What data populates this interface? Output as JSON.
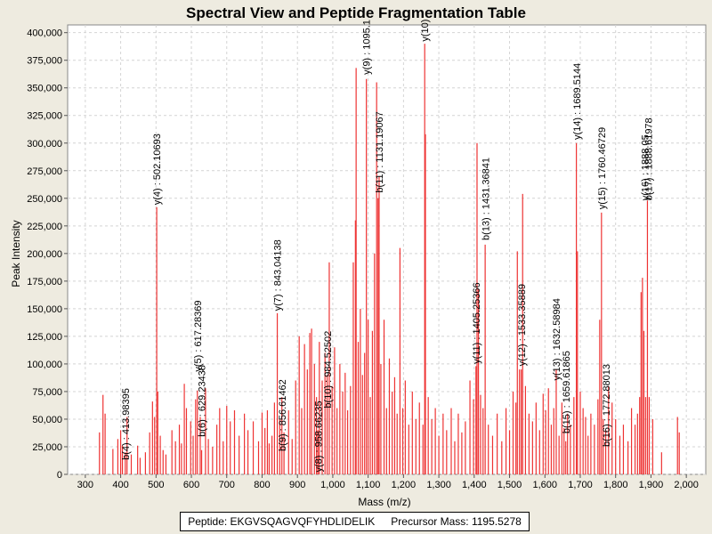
{
  "chart_data": {
    "type": "bar",
    "title": "Spectral View and Peptide Fragmentation Table",
    "xlabel": "Mass (m/z)",
    "ylabel": "Peak Intensity",
    "xlim": [
      250,
      2055
    ],
    "ylim": [
      0,
      407000
    ],
    "xticks": [
      300,
      400,
      500,
      600,
      700,
      800,
      900,
      1000,
      1100,
      1200,
      1300,
      1400,
      1500,
      1600,
      1700,
      1800,
      1900,
      2000
    ],
    "xtick_labels": [
      "300",
      "400",
      "500",
      "600",
      "700",
      "800",
      "900",
      "1,000",
      "1,100",
      "1,200",
      "1,300",
      "1,400",
      "1,500",
      "1,600",
      "1,700",
      "1,800",
      "1,900",
      "2,000"
    ],
    "yticks": [
      0,
      25000,
      50000,
      75000,
      100000,
      125000,
      150000,
      175000,
      200000,
      225000,
      250000,
      275000,
      300000,
      325000,
      350000,
      375000,
      400000
    ],
    "ytick_labels": [
      "0",
      "25,000",
      "50,000",
      "75,000",
      "100,000",
      "125,000",
      "150,000",
      "175,000",
      "200,000",
      "225,000",
      "250,000",
      "275,000",
      "300,000",
      "325,000",
      "350,000",
      "375,000",
      "400,000"
    ],
    "grid": true,
    "bar_color": "#ee3333",
    "peaks": [
      {
        "mz": 340,
        "i": 38000
      },
      {
        "mz": 350,
        "i": 72000
      },
      {
        "mz": 356,
        "i": 55000
      },
      {
        "mz": 378,
        "i": 23000
      },
      {
        "mz": 392,
        "i": 32000
      },
      {
        "mz": 400,
        "i": 40000
      },
      {
        "mz": 405,
        "i": 26000
      },
      {
        "mz": 413,
        "i": 20000
      },
      {
        "mz": 418,
        "i": 52000
      },
      {
        "mz": 430,
        "i": 18000
      },
      {
        "mz": 448,
        "i": 26000
      },
      {
        "mz": 455,
        "i": 15000
      },
      {
        "mz": 470,
        "i": 20000
      },
      {
        "mz": 482,
        "i": 38000
      },
      {
        "mz": 490,
        "i": 66000
      },
      {
        "mz": 496,
        "i": 52000
      },
      {
        "mz": 502,
        "i": 242000
      },
      {
        "mz": 505,
        "i": 75000
      },
      {
        "mz": 512,
        "i": 35000
      },
      {
        "mz": 520,
        "i": 22000
      },
      {
        "mz": 528,
        "i": 18000
      },
      {
        "mz": 545,
        "i": 40000
      },
      {
        "mz": 555,
        "i": 30000
      },
      {
        "mz": 566,
        "i": 45000
      },
      {
        "mz": 572,
        "i": 28000
      },
      {
        "mz": 580,
        "i": 82000
      },
      {
        "mz": 586,
        "i": 60000
      },
      {
        "mz": 598,
        "i": 48000
      },
      {
        "mz": 605,
        "i": 35000
      },
      {
        "mz": 612,
        "i": 68000
      },
      {
        "mz": 617,
        "i": 76000
      },
      {
        "mz": 625,
        "i": 52000
      },
      {
        "mz": 629,
        "i": 22000
      },
      {
        "mz": 640,
        "i": 78000
      },
      {
        "mz": 648,
        "i": 32000
      },
      {
        "mz": 660,
        "i": 25000
      },
      {
        "mz": 672,
        "i": 45000
      },
      {
        "mz": 680,
        "i": 60000
      },
      {
        "mz": 690,
        "i": 30000
      },
      {
        "mz": 700,
        "i": 62000
      },
      {
        "mz": 710,
        "i": 48000
      },
      {
        "mz": 722,
        "i": 58000
      },
      {
        "mz": 735,
        "i": 35000
      },
      {
        "mz": 750,
        "i": 55000
      },
      {
        "mz": 760,
        "i": 40000
      },
      {
        "mz": 775,
        "i": 48000
      },
      {
        "mz": 790,
        "i": 30000
      },
      {
        "mz": 800,
        "i": 56000
      },
      {
        "mz": 808,
        "i": 42000
      },
      {
        "mz": 815,
        "i": 58000
      },
      {
        "mz": 820,
        "i": 28000
      },
      {
        "mz": 828,
        "i": 35000
      },
      {
        "mz": 835,
        "i": 65000
      },
      {
        "mz": 843,
        "i": 146000
      },
      {
        "mz": 850,
        "i": 50000
      },
      {
        "mz": 856,
        "i": 70000
      },
      {
        "mz": 862,
        "i": 38000
      },
      {
        "mz": 875,
        "i": 58000
      },
      {
        "mz": 885,
        "i": 32000
      },
      {
        "mz": 895,
        "i": 85000
      },
      {
        "mz": 905,
        "i": 125000
      },
      {
        "mz": 912,
        "i": 60000
      },
      {
        "mz": 920,
        "i": 118000
      },
      {
        "mz": 928,
        "i": 95000
      },
      {
        "mz": 935,
        "i": 128000
      },
      {
        "mz": 940,
        "i": 132000
      },
      {
        "mz": 948,
        "i": 100000
      },
      {
        "mz": 954,
        "i": 70000
      },
      {
        "mz": 958,
        "i": 40000
      },
      {
        "mz": 962,
        "i": 120000
      },
      {
        "mz": 970,
        "i": 85000
      },
      {
        "mz": 978,
        "i": 110000
      },
      {
        "mz": 984,
        "i": 90000
      },
      {
        "mz": 990,
        "i": 192000
      },
      {
        "mz": 998,
        "i": 80000
      },
      {
        "mz": 1005,
        "i": 115000
      },
      {
        "mz": 1012,
        "i": 60000
      },
      {
        "mz": 1020,
        "i": 100000
      },
      {
        "mz": 1028,
        "i": 75000
      },
      {
        "mz": 1035,
        "i": 92000
      },
      {
        "mz": 1042,
        "i": 58000
      },
      {
        "mz": 1050,
        "i": 80000
      },
      {
        "mz": 1058,
        "i": 192000
      },
      {
        "mz": 1064,
        "i": 230000
      },
      {
        "mz": 1066,
        "i": 368000
      },
      {
        "mz": 1072,
        "i": 120000
      },
      {
        "mz": 1078,
        "i": 150000
      },
      {
        "mz": 1084,
        "i": 90000
      },
      {
        "mz": 1090,
        "i": 110000
      },
      {
        "mz": 1095,
        "i": 358000
      },
      {
        "mz": 1100,
        "i": 140000
      },
      {
        "mz": 1106,
        "i": 70000
      },
      {
        "mz": 1112,
        "i": 130000
      },
      {
        "mz": 1118,
        "i": 200000
      },
      {
        "mz": 1124,
        "i": 355000
      },
      {
        "mz": 1128,
        "i": 250000
      },
      {
        "mz": 1131,
        "i": 270000
      },
      {
        "mz": 1136,
        "i": 100000
      },
      {
        "mz": 1145,
        "i": 140000
      },
      {
        "mz": 1152,
        "i": 60000
      },
      {
        "mz": 1160,
        "i": 105000
      },
      {
        "mz": 1168,
        "i": 75000
      },
      {
        "mz": 1175,
        "i": 88000
      },
      {
        "mz": 1182,
        "i": 55000
      },
      {
        "mz": 1190,
        "i": 205000
      },
      {
        "mz": 1198,
        "i": 60000
      },
      {
        "mz": 1205,
        "i": 85000
      },
      {
        "mz": 1215,
        "i": 45000
      },
      {
        "mz": 1225,
        "i": 75000
      },
      {
        "mz": 1235,
        "i": 50000
      },
      {
        "mz": 1245,
        "i": 65000
      },
      {
        "mz": 1255,
        "i": 45000
      },
      {
        "mz": 1260,
        "i": 390000
      },
      {
        "mz": 1262,
        "i": 308000
      },
      {
        "mz": 1270,
        "i": 70000
      },
      {
        "mz": 1280,
        "i": 50000
      },
      {
        "mz": 1290,
        "i": 60000
      },
      {
        "mz": 1300,
        "i": 35000
      },
      {
        "mz": 1312,
        "i": 55000
      },
      {
        "mz": 1322,
        "i": 40000
      },
      {
        "mz": 1335,
        "i": 60000
      },
      {
        "mz": 1345,
        "i": 30000
      },
      {
        "mz": 1355,
        "i": 55000
      },
      {
        "mz": 1365,
        "i": 38000
      },
      {
        "mz": 1375,
        "i": 48000
      },
      {
        "mz": 1388,
        "i": 85000
      },
      {
        "mz": 1398,
        "i": 68000
      },
      {
        "mz": 1405,
        "i": 98000
      },
      {
        "mz": 1408,
        "i": 300000
      },
      {
        "mz": 1412,
        "i": 168000
      },
      {
        "mz": 1418,
        "i": 72000
      },
      {
        "mz": 1425,
        "i": 60000
      },
      {
        "mz": 1431,
        "i": 208000
      },
      {
        "mz": 1440,
        "i": 45000
      },
      {
        "mz": 1452,
        "i": 35000
      },
      {
        "mz": 1465,
        "i": 55000
      },
      {
        "mz": 1478,
        "i": 30000
      },
      {
        "mz": 1490,
        "i": 60000
      },
      {
        "mz": 1500,
        "i": 40000
      },
      {
        "mz": 1510,
        "i": 75000
      },
      {
        "mz": 1518,
        "i": 65000
      },
      {
        "mz": 1522,
        "i": 202000
      },
      {
        "mz": 1528,
        "i": 95000
      },
      {
        "mz": 1533,
        "i": 95000
      },
      {
        "mz": 1537,
        "i": 254000
      },
      {
        "mz": 1545,
        "i": 80000
      },
      {
        "mz": 1555,
        "i": 55000
      },
      {
        "mz": 1565,
        "i": 48000
      },
      {
        "mz": 1575,
        "i": 65000
      },
      {
        "mz": 1585,
        "i": 40000
      },
      {
        "mz": 1595,
        "i": 73000
      },
      {
        "mz": 1602,
        "i": 58000
      },
      {
        "mz": 1610,
        "i": 78000
      },
      {
        "mz": 1618,
        "i": 45000
      },
      {
        "mz": 1625,
        "i": 60000
      },
      {
        "mz": 1632,
        "i": 95000
      },
      {
        "mz": 1640,
        "i": 35000
      },
      {
        "mz": 1648,
        "i": 65000
      },
      {
        "mz": 1654,
        "i": 42000
      },
      {
        "mz": 1659,
        "i": 30000
      },
      {
        "mz": 1664,
        "i": 55000
      },
      {
        "mz": 1672,
        "i": 45000
      },
      {
        "mz": 1682,
        "i": 70000
      },
      {
        "mz": 1689,
        "i": 300000
      },
      {
        "mz": 1692,
        "i": 202000
      },
      {
        "mz": 1700,
        "i": 75000
      },
      {
        "mz": 1708,
        "i": 60000
      },
      {
        "mz": 1715,
        "i": 52000
      },
      {
        "mz": 1722,
        "i": 35000
      },
      {
        "mz": 1730,
        "i": 55000
      },
      {
        "mz": 1740,
        "i": 45000
      },
      {
        "mz": 1750,
        "i": 68000
      },
      {
        "mz": 1755,
        "i": 140000
      },
      {
        "mz": 1760,
        "i": 237000
      },
      {
        "mz": 1765,
        "i": 50000
      },
      {
        "mz": 1772,
        "i": 40000
      },
      {
        "mz": 1780,
        "i": 80000
      },
      {
        "mz": 1790,
        "i": 65000
      },
      {
        "mz": 1800,
        "i": 50000
      },
      {
        "mz": 1812,
        "i": 35000
      },
      {
        "mz": 1822,
        "i": 45000
      },
      {
        "mz": 1835,
        "i": 30000
      },
      {
        "mz": 1845,
        "i": 60000
      },
      {
        "mz": 1855,
        "i": 45000
      },
      {
        "mz": 1862,
        "i": 55000
      },
      {
        "mz": 1868,
        "i": 70000
      },
      {
        "mz": 1872,
        "i": 165000
      },
      {
        "mz": 1876,
        "i": 178000
      },
      {
        "mz": 1880,
        "i": 130000
      },
      {
        "mz": 1885,
        "i": 70000
      },
      {
        "mz": 1890,
        "i": 248000
      },
      {
        "mz": 1895,
        "i": 70000
      },
      {
        "mz": 1905,
        "i": 50000
      },
      {
        "mz": 1930,
        "i": 20000
      },
      {
        "mz": 1975,
        "i": 52000
      },
      {
        "mz": 1980,
        "i": 38000
      }
    ],
    "annotations": [
      {
        "mz": 413.98395,
        "i": 13000,
        "label": "b(4) : 413.98395"
      },
      {
        "mz": 502.10693,
        "i": 244000,
        "label": "y(4) : 502.10693"
      },
      {
        "mz": 617.28369,
        "i": 93000,
        "label": "y(5) : 617.28369"
      },
      {
        "mz": 629.23438,
        "i": 34000,
        "label": "b(6) : 629.23438"
      },
      {
        "mz": 843.04138,
        "i": 148000,
        "label": "y(7) : 843.04138"
      },
      {
        "mz": 856.61462,
        "i": 21000,
        "label": "b(9) : 856.61462"
      },
      {
        "mz": 958.66235,
        "i": 2000,
        "label": "y(8) : 958.66235"
      },
      {
        "mz": 984.52502,
        "i": 60000,
        "label": "b(10) : 984.52502"
      },
      {
        "mz": 1095.1,
        "i": 362000,
        "label": "y(9) : 1095.1"
      },
      {
        "mz": 1131.19067,
        "i": 255000,
        "label": "b(11) : 1131.19067"
      },
      {
        "mz": 1260.0,
        "i": 392000,
        "label": "y(10)"
      },
      {
        "mz": 1405.25366,
        "i": 100000,
        "label": "y(11) : 1405.25366"
      },
      {
        "mz": 1431.36841,
        "i": 212000,
        "label": "b(13) : 1431.36841"
      },
      {
        "mz": 1533.35889,
        "i": 98000,
        "label": "y(12) : 1533.35889"
      },
      {
        "mz": 1632.58984,
        "i": 85000,
        "label": "y(13) : 1632.58984"
      },
      {
        "mz": 1659.61865,
        "i": 37000,
        "label": "b(15) : 1659.61865"
      },
      {
        "mz": 1689.5144,
        "i": 303000,
        "label": "y(14) : 1689.5144"
      },
      {
        "mz": 1760.46729,
        "i": 240000,
        "label": "y(15) : 1760.46729"
      },
      {
        "mz": 1772.88013,
        "i": 25000,
        "label": "b(16) : 1772.88013"
      },
      {
        "mz": 1882.0,
        "i": 248000,
        "label": "y(16) : 1888.05"
      },
      {
        "mz": 1893.0,
        "i": 248000,
        "label": "b(17) : 1888.61978"
      }
    ]
  },
  "info": {
    "peptide": "Peptide: EKGVSQAGVQFYHDLIDELIK",
    "precursor": "Precursor Mass: 1195.5278"
  }
}
